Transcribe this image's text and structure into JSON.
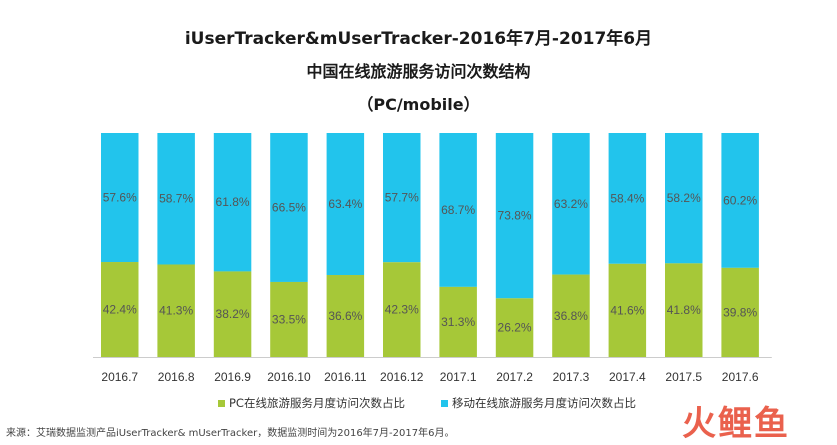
{
  "title_line1": "iUserTracker&mUserTracker-2016年7月-2017年6月",
  "title_line2": "中国在线旅游服务访问次数结构",
  "title_line3": "（PC/mobile）",
  "source_note": "来源：艾瑞数据监测产品iUserTracker& mUserTracker，数据监测时间为2016年7月-2017年6月。",
  "logo_text": "火鲤鱼",
  "colors": {
    "pc": "#a6c838",
    "mobile": "#22c4ec",
    "label": "#555555"
  },
  "chart_data": {
    "type": "bar",
    "stacked": true,
    "categories": [
      "2016.7",
      "2016.8",
      "2016.9",
      "2016.10",
      "2016.11",
      "2016.12",
      "2017.1",
      "2017.2",
      "2017.3",
      "2017.4",
      "2017.5",
      "2017.6"
    ],
    "series": [
      {
        "name": "PC在线旅游服务月度访问次数占比",
        "values": [
          42.4,
          41.3,
          38.2,
          33.5,
          36.6,
          42.3,
          31.3,
          26.2,
          36.8,
          41.6,
          41.8,
          39.8
        ],
        "labels": [
          "42.4%",
          "41.3%",
          "38.2%",
          "33.5%",
          "36.6%",
          "42.3%",
          "31.3%",
          "26.2%",
          "36.8%",
          "41.6%",
          "41.8%",
          "39.8%"
        ]
      },
      {
        "name": "移动在线旅游服务月度访问次数占比",
        "values": [
          57.6,
          58.7,
          61.8,
          66.5,
          63.4,
          57.7,
          68.7,
          73.8,
          63.2,
          58.4,
          58.2,
          60.2
        ],
        "labels": [
          "57.6%",
          "58.7%",
          "61.8%",
          "66.5%",
          "63.4%",
          "57.7%",
          "68.7%",
          "73.8%",
          "63.2%",
          "58.4%",
          "58.2%",
          "60.2%"
        ]
      }
    ],
    "ylim": [
      0,
      100
    ],
    "grid": false,
    "legend_position": "bottom"
  }
}
